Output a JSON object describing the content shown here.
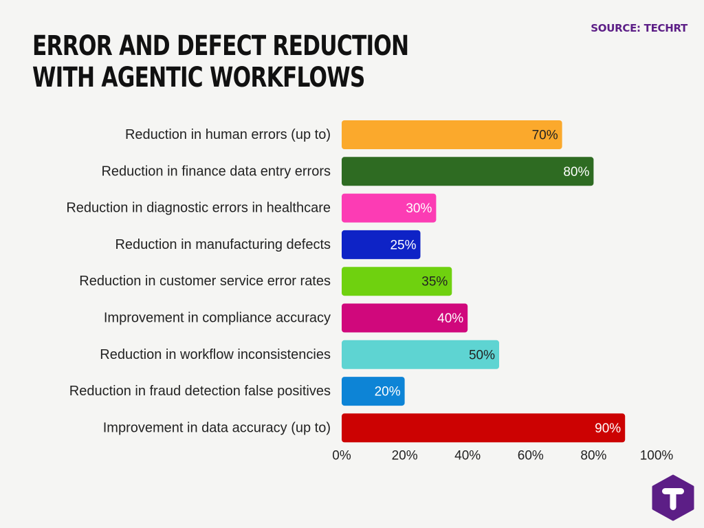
{
  "source": "SOURCE: TECHRT",
  "title": "ERROR AND DEFECT REDUCTION WITH AGENTIC WORKFLOWS",
  "logo": {
    "icon": "techrt-logo-icon",
    "color": "#5c1e86"
  },
  "chart_data": {
    "type": "bar",
    "orientation": "horizontal",
    "categories": [
      "Reduction in human errors (up to)",
      "Reduction in finance data entry errors",
      "Reduction in diagnostic errors in healthcare",
      "Reduction in manufacturing defects",
      "Reduction in customer service error rates",
      "Improvement in compliance accuracy",
      "Reduction in workflow inconsistencies",
      "Reduction in fraud detection false positives",
      "Improvement in data accuracy (up to)"
    ],
    "values": [
      70,
      80,
      30,
      25,
      35,
      40,
      50,
      20,
      90
    ],
    "value_labels": [
      "70%",
      "80%",
      "30%",
      "25%",
      "35%",
      "40%",
      "50%",
      "20%",
      "90%"
    ],
    "colors": [
      "#fba92c",
      "#2e6b22",
      "#fc3cb4",
      "#0e23c6",
      "#6fd10f",
      "#d0087c",
      "#5ed4d2",
      "#0d84d6",
      "#cc0202"
    ],
    "label_colors": [
      "#222222",
      "#ffffff",
      "#ffffff",
      "#ffffff",
      "#222222",
      "#ffffff",
      "#222222",
      "#ffffff",
      "#ffffff"
    ],
    "xlim": [
      0,
      100
    ],
    "xticks": [
      "0%",
      "20%",
      "40%",
      "60%",
      "80%",
      "100%"
    ],
    "grid": false,
    "legend": "none"
  }
}
